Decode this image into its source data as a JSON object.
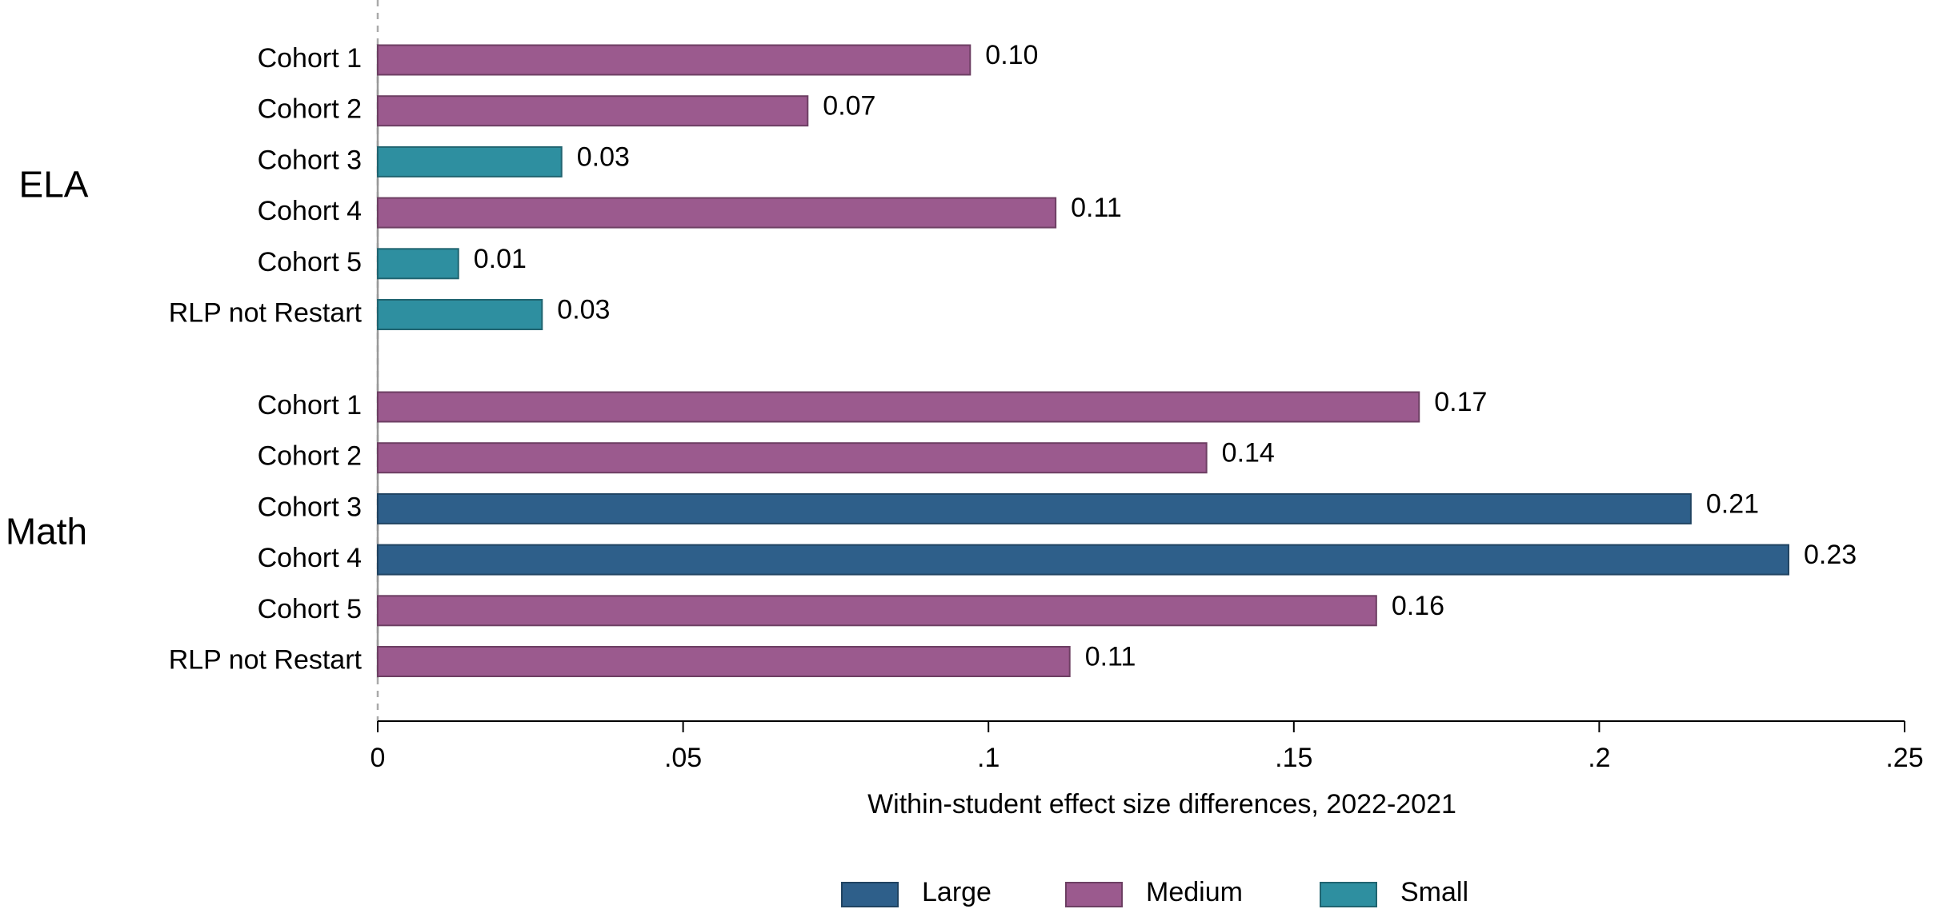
{
  "chart_data": {
    "type": "bar",
    "orientation": "horizontal",
    "x_label": "Within-student effect size differences, 2022-2021",
    "groups": [
      {
        "name": "ELA"
      },
      {
        "name": "Math"
      }
    ],
    "categories": [
      "Cohort 1",
      "Cohort 2",
      "Cohort 3",
      "Cohort 4",
      "Cohort 5",
      "RLP not Restart",
      "Cohort 1",
      "Cohort 2",
      "Cohort 3",
      "Cohort 4",
      "Cohort 5",
      "RLP not Restart"
    ],
    "series": [
      {
        "name": "Large",
        "color": "#2e5f8a",
        "values": [
          null,
          null,
          null,
          null,
          null,
          null,
          null,
          null,
          0.215,
          0.231,
          null,
          null
        ],
        "value_labels": [
          null,
          null,
          null,
          null,
          null,
          null,
          null,
          null,
          "0.21",
          "0.23",
          null,
          null
        ]
      },
      {
        "name": "Medium",
        "color": "#9b5a8e",
        "values": [
          0.097,
          0.0704,
          null,
          0.111,
          null,
          null,
          0.1705,
          0.1357,
          null,
          null,
          0.1635,
          0.1133
        ],
        "value_labels": [
          "0.10",
          "0.07",
          null,
          "0.11",
          null,
          null,
          "0.17",
          "0.14",
          null,
          null,
          "0.16",
          "0.11"
        ]
      },
      {
        "name": "Small",
        "color": "#2e8fa0",
        "values": [
          null,
          null,
          0.0301,
          null,
          0.0132,
          0.0269,
          null,
          null,
          null,
          null,
          null,
          null
        ],
        "value_labels": [
          null,
          null,
          "0.03",
          null,
          "0.01",
          "0.03",
          null,
          null,
          null,
          null,
          null,
          null
        ]
      }
    ],
    "xlim": [
      0,
      0.25
    ],
    "xticks": [
      0,
      {
        "value": 0.05,
        "label": ".05"
      },
      {
        "value": 0.1,
        "label": ".1"
      },
      {
        "value": 0.15,
        "label": ".15"
      },
      {
        "value": 0.2,
        "label": ".2"
      },
      {
        "value": 0.25,
        "label": ".25"
      }
    ]
  }
}
